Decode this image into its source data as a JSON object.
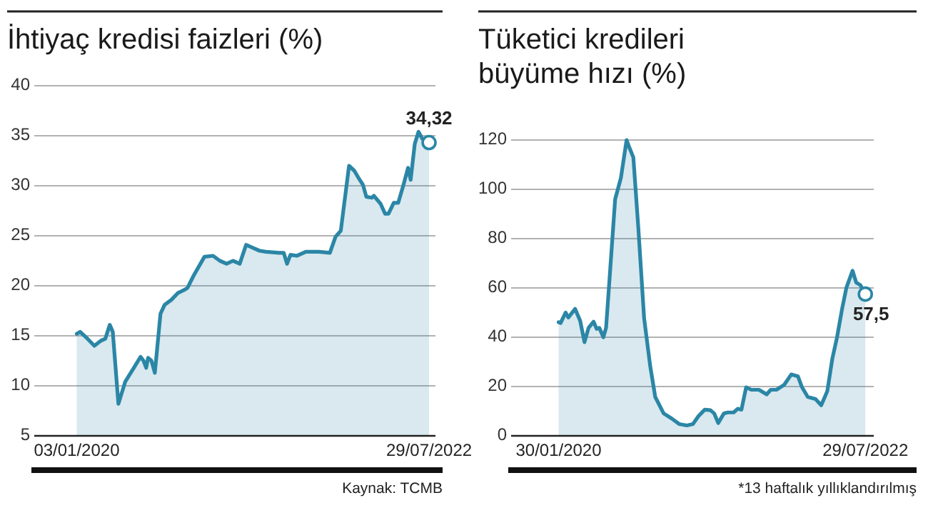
{
  "chart_data": [
    {
      "type": "area",
      "title": "İhtiyaç kredisi faizleri (%)",
      "color": "#2b86a6",
      "grid": "y",
      "xlim": [
        "2019-09-12",
        "2022-08-15"
      ],
      "xticks": [
        {
          "value": "2020-01-03",
          "label": "03/01/2020"
        },
        {
          "value": "2022-07-29",
          "label": "29/07/2022"
        }
      ],
      "ylim": [
        5,
        40
      ],
      "yticks": [
        5,
        10,
        15,
        20,
        25,
        30,
        35,
        40
      ],
      "x": [
        "2020-01-03",
        "2020-01-12",
        "2020-02-01",
        "2020-02-19",
        "2020-03-07",
        "2020-03-19",
        "2020-03-31",
        "2020-04-08",
        "2020-04-23",
        "2020-05-11",
        "2020-06-03",
        "2020-06-21",
        "2020-06-29",
        "2020-07-06",
        "2020-07-11",
        "2020-07-20",
        "2020-07-29",
        "2020-08-13",
        "2020-08-24",
        "2020-09-11",
        "2020-09-29",
        "2020-10-16",
        "2020-10-24",
        "2020-11-09",
        "2020-12-08",
        "2020-12-31",
        "2021-01-18",
        "2021-02-05",
        "2021-02-22",
        "2021-03-12",
        "2021-03-29",
        "2021-04-16",
        "2021-05-04",
        "2021-05-21",
        "2021-06-25",
        "2021-07-07",
        "2021-07-16",
        "2021-07-25",
        "2021-08-11",
        "2021-09-04",
        "2021-10-09",
        "2021-11-07",
        "2021-11-22",
        "2021-12-06",
        "2021-12-28",
        "2022-01-11",
        "2022-01-22",
        "2022-02-03",
        "2022-02-12",
        "2022-02-27",
        "2022-03-04",
        "2022-03-22",
        "2022-04-03",
        "2022-04-12",
        "2022-04-26",
        "2022-05-08",
        "2022-05-22",
        "2022-06-03",
        "2022-06-10",
        "2022-06-21",
        "2022-07-01",
        "2022-07-11",
        "2022-07-29"
      ],
      "values": [
        15.2,
        15.4,
        14.7,
        14.0,
        14.5,
        14.7,
        16.1,
        15.4,
        8.2,
        10.4,
        11.8,
        12.9,
        12.5,
        11.8,
        12.8,
        12.5,
        11.3,
        17.2,
        18.1,
        18.6,
        19.3,
        19.6,
        19.8,
        21.0,
        22.9,
        23.0,
        22.5,
        22.2,
        22.5,
        22.2,
        24.1,
        23.8,
        23.5,
        23.4,
        23.3,
        23.3,
        22.2,
        23.1,
        23.0,
        23.4,
        23.4,
        23.3,
        24.9,
        25.5,
        32.0,
        31.5,
        30.8,
        30.1,
        28.9,
        28.8,
        29.0,
        28.2,
        27.2,
        27.2,
        28.3,
        28.3,
        30.1,
        31.8,
        30.6,
        34.2,
        35.4,
        34.7,
        34.32
      ],
      "annotations": [
        {
          "text": "34,32",
          "x": "2022-07-29",
          "y": 34.32
        },
        "Kaynak: TCMB"
      ]
    },
    {
      "type": "area",
      "title": "Tüketici kredileri büyüme hızı (%)",
      "color": "#2b86a6",
      "grid": "y",
      "xlim": [
        "2019-09-11",
        "2022-08-23"
      ],
      "xticks": [
        {
          "value": "2020-01-30",
          "label": "30/01/2020"
        },
        {
          "value": "2022-07-29",
          "label": "29/07/2022"
        }
      ],
      "ylim": [
        0,
        120
      ],
      "yticks": [
        0,
        20,
        40,
        60,
        80,
        100,
        120
      ],
      "x": [
        "2020-01-30",
        "2020-02-05",
        "2020-02-20",
        "2020-02-28",
        "2020-03-19",
        "2020-04-03",
        "2020-04-16",
        "2020-04-28",
        "2020-05-13",
        "2020-05-22",
        "2020-05-30",
        "2020-06-11",
        "2020-06-19",
        "2020-06-30",
        "2020-07-16",
        "2020-08-02",
        "2020-08-19",
        "2020-08-27",
        "2020-09-08",
        "2020-09-23",
        "2020-10-10",
        "2020-10-28",
        "2020-11-12",
        "2020-12-07",
        "2020-12-30",
        "2021-01-22",
        "2021-02-14",
        "2021-03-04",
        "2021-03-21",
        "2021-04-08",
        "2021-04-25",
        "2021-05-06",
        "2021-05-18",
        "2021-06-04",
        "2021-06-16",
        "2021-07-03",
        "2021-07-15",
        "2021-07-26",
        "2021-08-09",
        "2021-08-24",
        "2021-09-16",
        "2021-10-09",
        "2021-10-21",
        "2021-11-07",
        "2021-11-30",
        "2021-12-21",
        "2022-01-10",
        "2022-01-22",
        "2022-02-08",
        "2022-03-03",
        "2022-03-20",
        "2022-04-07",
        "2022-04-22",
        "2022-05-06",
        "2022-05-21",
        "2022-06-03",
        "2022-06-21",
        "2022-07-02",
        "2022-07-14",
        "2022-07-29"
      ],
      "values": [
        46.1,
        45.8,
        50,
        48,
        51.5,
        46.7,
        38,
        43.8,
        46.3,
        43.4,
        43.8,
        40,
        43.8,
        65,
        96,
        104.6,
        120,
        117,
        113,
        84,
        47.7,
        28.4,
        15.8,
        9.1,
        7.1,
        4.8,
        4.2,
        4.8,
        8.1,
        10.6,
        10.4,
        9.1,
        5.2,
        9.1,
        9.5,
        9.5,
        11,
        10.6,
        19.7,
        18.7,
        18.7,
        16.8,
        18.7,
        18.7,
        20.7,
        24.9,
        24.1,
        19.7,
        15.8,
        14.9,
        12.4,
        18.1,
        31.3,
        40,
        51.5,
        60.2,
        67,
        62.2,
        61.2,
        57.5
      ],
      "annotations": [
        {
          "text": "57,5",
          "x": "2022-07-29",
          "y": 57.5
        },
        "*13 haftalık yıllıklandırılmış"
      ]
    }
  ]
}
